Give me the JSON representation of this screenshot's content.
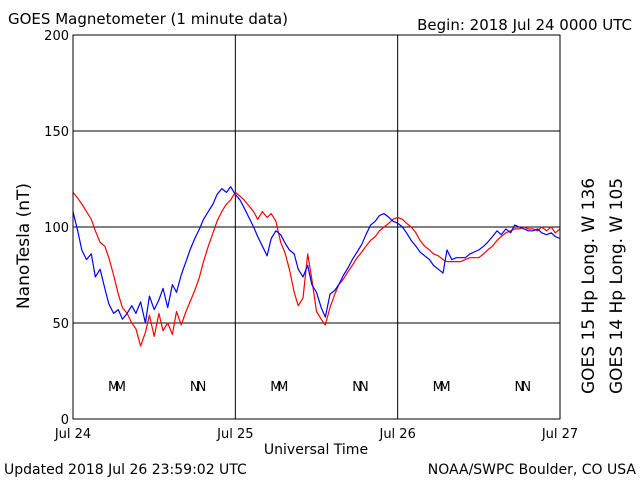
{
  "header": {
    "title": "GOES Magnetometer (1 minute data)",
    "begin": "Begin:  2018 Jul 24 0000 UTC"
  },
  "footer": {
    "updated": "Updated 2018 Jul 26 23:59:02 UTC",
    "credit": "NOAA/SWPC Boulder, CO USA"
  },
  "colors": {
    "goes15": "#ff0000",
    "goes14": "#0000ff",
    "axes": "#000000",
    "background": "#ffffff"
  },
  "chart_data": {
    "type": "line",
    "title": "GOES Magnetometer (1 minute data)",
    "xlabel": "Universal Time",
    "ylabel": "NanoTesla (nT)",
    "xlim": [
      "2018-07-24 00:00",
      "2018-07-27 00:00"
    ],
    "x_ticks": [
      "Jul 24",
      "Jul 25",
      "Jul 26",
      "Jul 27"
    ],
    "ylim": [
      0,
      200
    ],
    "y_ticks": [
      "0",
      "50",
      "100",
      "150",
      "200"
    ],
    "grid": true,
    "legend": "right",
    "x_unit": "hours since 2018 Jul 24 0000 UTC",
    "series": [
      {
        "name": "GOES 15 Hp   Long. W 136",
        "color": "#ff0000",
        "points": [
          [
            0.0,
            118
          ],
          [
            0.7,
            115
          ],
          [
            1.3,
            112
          ],
          [
            2.0,
            108
          ],
          [
            2.7,
            104
          ],
          [
            3.3,
            98
          ],
          [
            4.0,
            92
          ],
          [
            4.7,
            90
          ],
          [
            5.3,
            84
          ],
          [
            6.0,
            75
          ],
          [
            6.7,
            65
          ],
          [
            7.3,
            58
          ],
          [
            8.0,
            55
          ],
          [
            8.7,
            50
          ],
          [
            9.3,
            47
          ],
          [
            10.0,
            38
          ],
          [
            10.7,
            45
          ],
          [
            11.3,
            54
          ],
          [
            12.0,
            43
          ],
          [
            12.7,
            55
          ],
          [
            13.3,
            46
          ],
          [
            14.0,
            50
          ],
          [
            14.7,
            44
          ],
          [
            15.3,
            56
          ],
          [
            16.0,
            49
          ],
          [
            16.7,
            56
          ],
          [
            17.3,
            61
          ],
          [
            18.0,
            67
          ],
          [
            18.7,
            74
          ],
          [
            19.3,
            82
          ],
          [
            20.0,
            90
          ],
          [
            20.7,
            97
          ],
          [
            21.3,
            103
          ],
          [
            22.0,
            108
          ],
          [
            22.7,
            112
          ],
          [
            23.3,
            114
          ],
          [
            24.0,
            118
          ],
          [
            24.7,
            116
          ],
          [
            25.3,
            114
          ],
          [
            26.0,
            111
          ],
          [
            26.7,
            108
          ],
          [
            27.3,
            104
          ],
          [
            28.0,
            108
          ],
          [
            28.7,
            105
          ],
          [
            29.3,
            107
          ],
          [
            30.0,
            103
          ],
          [
            30.7,
            92
          ],
          [
            31.3,
            87
          ],
          [
            32.0,
            78
          ],
          [
            32.7,
            66
          ],
          [
            33.3,
            59
          ],
          [
            34.0,
            63
          ],
          [
            34.7,
            86
          ],
          [
            35.3,
            73
          ],
          [
            36.0,
            56
          ],
          [
            36.7,
            52
          ],
          [
            37.3,
            49
          ],
          [
            38.0,
            58
          ],
          [
            38.7,
            65
          ],
          [
            39.3,
            70
          ],
          [
            40.0,
            73
          ],
          [
            40.7,
            77
          ],
          [
            41.3,
            80
          ],
          [
            42.0,
            84
          ],
          [
            42.7,
            87
          ],
          [
            43.3,
            90
          ],
          [
            44.0,
            93
          ],
          [
            44.7,
            95
          ],
          [
            45.3,
            98
          ],
          [
            46.0,
            100
          ],
          [
            46.7,
            102
          ],
          [
            47.3,
            104
          ],
          [
            48.0,
            105
          ],
          [
            48.7,
            104
          ],
          [
            49.3,
            102
          ],
          [
            50.0,
            100
          ],
          [
            50.7,
            97
          ],
          [
            51.3,
            93
          ],
          [
            52.0,
            90
          ],
          [
            52.7,
            88
          ],
          [
            53.3,
            86
          ],
          [
            54.0,
            85
          ],
          [
            54.7,
            83
          ],
          [
            55.3,
            82
          ],
          [
            56.0,
            82
          ],
          [
            56.7,
            82
          ],
          [
            57.3,
            82
          ],
          [
            58.0,
            83
          ],
          [
            58.7,
            84
          ],
          [
            59.3,
            84
          ],
          [
            60.0,
            84
          ],
          [
            60.7,
            86
          ],
          [
            61.3,
            88
          ],
          [
            62.0,
            90
          ],
          [
            62.7,
            93
          ],
          [
            63.3,
            95
          ],
          [
            64.0,
            97
          ],
          [
            64.7,
            98
          ],
          [
            65.3,
            99
          ],
          [
            66.0,
            99
          ],
          [
            66.7,
            100
          ],
          [
            67.3,
            99
          ],
          [
            68.0,
            99
          ],
          [
            68.7,
            98
          ],
          [
            69.3,
            100
          ],
          [
            70.0,
            98
          ],
          [
            70.7,
            100
          ],
          [
            71.3,
            97
          ],
          [
            72.0,
            99
          ]
        ]
      },
      {
        "name": "GOES 14 Hp   Long. W 105",
        "color": "#0000ff",
        "points": [
          [
            0.0,
            108
          ],
          [
            0.7,
            98
          ],
          [
            1.3,
            88
          ],
          [
            2.0,
            83
          ],
          [
            2.7,
            86
          ],
          [
            3.3,
            74
          ],
          [
            4.0,
            78
          ],
          [
            4.7,
            68
          ],
          [
            5.3,
            60
          ],
          [
            6.0,
            55
          ],
          [
            6.7,
            57
          ],
          [
            7.3,
            52
          ],
          [
            8.0,
            55
          ],
          [
            8.7,
            59
          ],
          [
            9.3,
            55
          ],
          [
            10.0,
            61
          ],
          [
            10.7,
            50
          ],
          [
            11.3,
            64
          ],
          [
            12.0,
            57
          ],
          [
            12.7,
            62
          ],
          [
            13.3,
            68
          ],
          [
            14.0,
            58
          ],
          [
            14.7,
            70
          ],
          [
            15.3,
            66
          ],
          [
            16.0,
            75
          ],
          [
            16.7,
            82
          ],
          [
            17.3,
            88
          ],
          [
            18.0,
            94
          ],
          [
            18.7,
            99
          ],
          [
            19.3,
            104
          ],
          [
            20.0,
            108
          ],
          [
            20.7,
            112
          ],
          [
            21.3,
            117
          ],
          [
            22.0,
            120
          ],
          [
            22.7,
            118
          ],
          [
            23.3,
            121
          ],
          [
            24.0,
            117
          ],
          [
            24.7,
            114
          ],
          [
            25.3,
            110
          ],
          [
            26.0,
            105
          ],
          [
            26.7,
            100
          ],
          [
            27.3,
            95
          ],
          [
            28.0,
            90
          ],
          [
            28.7,
            85
          ],
          [
            29.3,
            94
          ],
          [
            30.0,
            98
          ],
          [
            30.7,
            96
          ],
          [
            31.3,
            92
          ],
          [
            32.0,
            88
          ],
          [
            32.7,
            86
          ],
          [
            33.3,
            78
          ],
          [
            34.0,
            74
          ],
          [
            34.7,
            80
          ],
          [
            35.3,
            70
          ],
          [
            36.0,
            66
          ],
          [
            36.7,
            58
          ],
          [
            37.3,
            53
          ],
          [
            38.0,
            65
          ],
          [
            38.7,
            67
          ],
          [
            39.3,
            70
          ],
          [
            40.0,
            75
          ],
          [
            40.7,
            79
          ],
          [
            41.3,
            83
          ],
          [
            42.0,
            87
          ],
          [
            42.7,
            91
          ],
          [
            43.3,
            96
          ],
          [
            44.0,
            101
          ],
          [
            44.7,
            103
          ],
          [
            45.3,
            106
          ],
          [
            46.0,
            107
          ],
          [
            46.7,
            105
          ],
          [
            47.3,
            103
          ],
          [
            48.0,
            102
          ],
          [
            48.7,
            100
          ],
          [
            49.3,
            97
          ],
          [
            50.0,
            93
          ],
          [
            50.7,
            90
          ],
          [
            51.3,
            87
          ],
          [
            52.0,
            85
          ],
          [
            52.7,
            83
          ],
          [
            53.3,
            80
          ],
          [
            54.0,
            78
          ],
          [
            54.7,
            76
          ],
          [
            55.3,
            88
          ],
          [
            56.0,
            83
          ],
          [
            56.7,
            84
          ],
          [
            57.3,
            84
          ],
          [
            58.0,
            84
          ],
          [
            58.7,
            86
          ],
          [
            59.3,
            87
          ],
          [
            60.0,
            88
          ],
          [
            60.7,
            90
          ],
          [
            61.3,
            92
          ],
          [
            62.0,
            95
          ],
          [
            62.7,
            98
          ],
          [
            63.3,
            96
          ],
          [
            64.0,
            99
          ],
          [
            64.7,
            97
          ],
          [
            65.3,
            101
          ],
          [
            66.0,
            100
          ],
          [
            66.7,
            99
          ],
          [
            67.3,
            98
          ],
          [
            68.0,
            98
          ],
          [
            68.7,
            99
          ],
          [
            69.3,
            97
          ],
          [
            70.0,
            96
          ],
          [
            70.7,
            97
          ],
          [
            71.3,
            95
          ],
          [
            72.0,
            94
          ]
        ]
      }
    ],
    "markers": [
      {
        "label": "M",
        "series": "GOES 14 Hp   Long. W 105",
        "x": 6.0
      },
      {
        "label": "M",
        "series": "GOES 15 Hp   Long. W 136",
        "x": 7.0
      },
      {
        "label": "N",
        "series": "GOES 14 Hp   Long. W 105",
        "x": 18.0
      },
      {
        "label": "N",
        "series": "GOES 15 Hp   Long. W 136",
        "x": 19.0
      },
      {
        "label": "M",
        "series": "GOES 14 Hp   Long. W 105",
        "x": 30.0
      },
      {
        "label": "M",
        "series": "GOES 15 Hp   Long. W 136",
        "x": 31.0
      },
      {
        "label": "N",
        "series": "GOES 14 Hp   Long. W 105",
        "x": 42.0
      },
      {
        "label": "N",
        "series": "GOES 15 Hp   Long. W 136",
        "x": 43.0
      },
      {
        "label": "M",
        "series": "GOES 14 Hp   Long. W 105",
        "x": 54.0
      },
      {
        "label": "M",
        "series": "GOES 15 Hp   Long. W 136",
        "x": 55.0
      },
      {
        "label": "N",
        "series": "GOES 14 Hp   Long. W 105",
        "x": 66.0
      },
      {
        "label": "N",
        "series": "GOES 15 Hp   Long. W 136",
        "x": 67.0
      }
    ]
  }
}
